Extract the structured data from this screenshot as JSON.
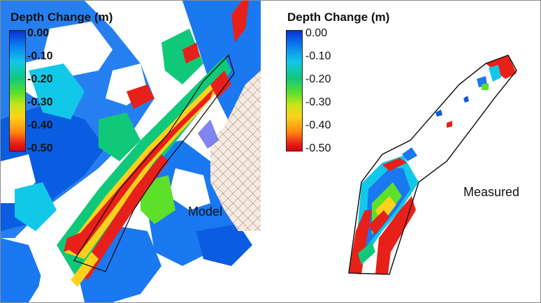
{
  "left_panel": {
    "legend_title": "Depth Change (m)",
    "ticks": [
      "0.00",
      "-0.10",
      "-0.20",
      "-0.30",
      "-0.40",
      "-0.50"
    ],
    "label": "Model"
  },
  "right_panel": {
    "legend_title": "Depth Change (m)",
    "ticks": [
      "0.00",
      "-0.10",
      "-0.20",
      "-0.30",
      "-0.40",
      "-0.50"
    ],
    "label": "Measured"
  },
  "colors": {
    "deep_blue": "#0a2fd0",
    "blue": "#0a7cf0",
    "cyan": "#12c8e8",
    "green": "#10c87a",
    "yellow": "#ffd21a",
    "orange": "#ff8a10",
    "red": "#e8201a",
    "grid_brown": "#b07a5a"
  }
}
